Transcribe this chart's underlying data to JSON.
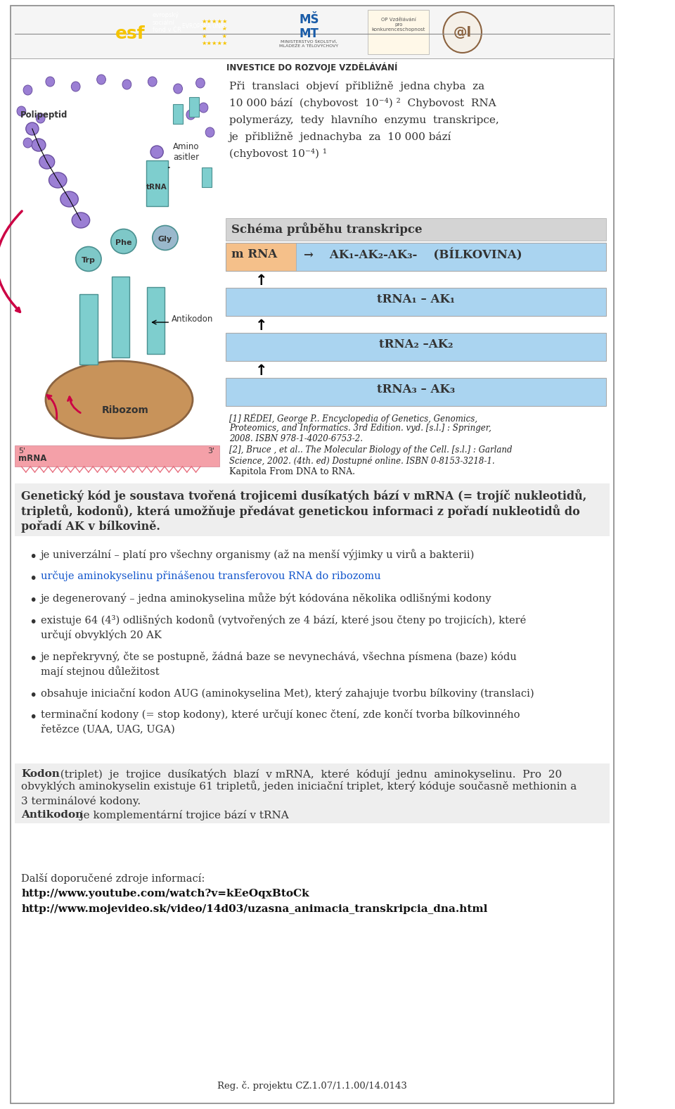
{
  "bg_color": "#ffffff",
  "investice_text": "INVESTICE DO ROZVOJE VZDĚLÁVÁNÍ",
  "intro_lines": [
    "Při  translaci  objeví  přibližně  jedna chyba  za",
    "10 000 bází  (chybovost  10⁻⁴) ²  Chybovost  RNA",
    "polymerázy,  tedy  hlavního  enzymu  transkripce,",
    "je  přibližně  jednachyba  za  10 000 bází",
    "(chybovost 10⁻⁴) ¹"
  ],
  "schema_title": "Schéma průběhu transkripce",
  "schema_row1_left": "m RNA",
  "schema_row1_right": "→    AK₁-AK₂-AK₃-    (BÍLKOVINA)",
  "schema_row2": "tRNA₁ – AK₁",
  "schema_row3": "tRNA₂ –AK₂",
  "schema_row4": "tRNA₃ – AK₃",
  "fn1_lines": [
    "[1] RÉDEI, George P.. Encyclopedia of Genetics, Genomics,",
    "Proteomics, and Informatics. 3rd Edition. vyd. [s.l.] : Springer,",
    "2008. ISBN 978-1-4020-6753-2."
  ],
  "fn2_lines": [
    "[2], Bruce , et al.. The Molecular Biology of the Cell. [s.l.] : Garland",
    "Science, 2002. (4th. ed) Dostupné online. ISBN 0-8153-3218-1."
  ],
  "kapitola": "Kapitola From DNA to RNA.",
  "bold_text_lines": [
    "Genetický kód je soustava tvořená trojicemi dusíkatých bází v mRNA (= trojíč nukleotidů,",
    "tripletů, kodonů), která umožňuje předávat genetickou informaci z pořadí nukleotidů do",
    "pořadí AK v bílkovině."
  ],
  "bullets": [
    "je univerzální – platí pro všechny organismy (až na menší výjimky u virů a bakterii)",
    "určuje aminokyselinu přinášenou transferovou RNA do ribozomu",
    "je degenerovaný – jedna aminokyselina může být kódována několika odlišnými kodony",
    "existuje 64 (4³) odlišných kodonů (vytvořených ze 4 bází, které jsou čteny po trojicích), které\nurčují obvyklých 20 AK",
    "je nepřekryvný, čte se postupně, žádná baze se nevynechává, všechna písmena (baze) kódu\nmají stejnou důležitost",
    "obsahuje iniciační kodon AUG (aminokyselina Met), který zahajuje tvorbu bílkoviny (translaci)",
    "terminační kodony (= stop kodony), které určují konec čtení, zde končí tvorba bílkovinného\nřetězce (UAA, UAG, UGA)"
  ],
  "bullet2_color": "#1155cc",
  "kodon_bold": "Kodon",
  "kodon_rest": "  (triplet)  je  trojice  dusíkatých  blazí  v mRNA,  které  kódují  jednu  aminokyselinu.  Pro  20",
  "kodon_line2": "obvyklých aminokyselin existuje 61 tripletů, jeden iniciační triplet, který kóduje současně methionin a",
  "kodon_line3": "3 terminálové kodony.",
  "antikodon_bold": "Antikodon",
  "antikodon_rest": " je komplementární trojice bází v tRNA",
  "dalsi": "Další doporučené zdroje informací:",
  "url1": "http://www.youtube.com/watch?v=kEeOqxBtoCk",
  "url2": "http://www.mojevideo.sk/video/14d03/uzasna_animacia_transkripcia_dna.html",
  "footer": "Reg. č. projektu CZ.1.07/1.1.00/14.0143",
  "schema_title_bg": "#d4d4d4",
  "schema_row1_left_bg": "#f5c08a",
  "schema_row1_right_bg": "#aad4f0",
  "schema_rows_bg": "#aad4f0",
  "bold_bg": "#e8e8e8",
  "kodon_bg": "#e8e8e8"
}
